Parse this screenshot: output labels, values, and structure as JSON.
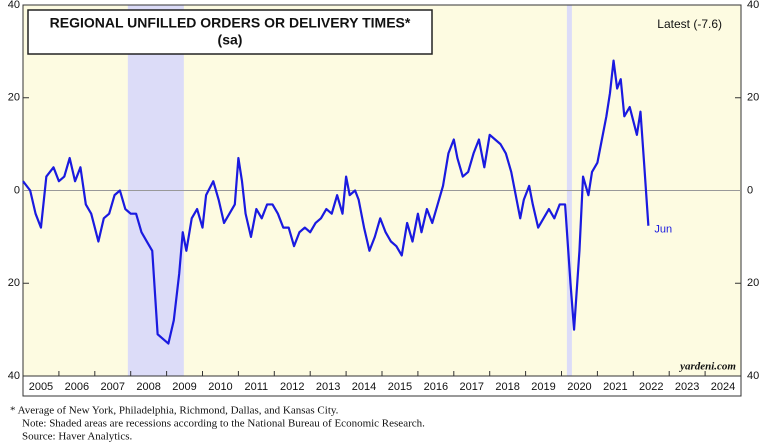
{
  "chart_data": {
    "type": "line",
    "title": "REGIONAL UNFILLED ORDERS OR DELIVERY TIMES*",
    "subtitle": "(sa)",
    "annotations": {
      "latest": "Latest (-7.6)",
      "end_label": "Jun",
      "source_mark": "yardeni.com"
    },
    "footnotes": [
      "*   Average of New York, Philadelphia, Richmond, Dallas, and Kansas City.",
      "Note: Shaded areas are recessions according to the National Bureau of Economic Research.",
      "Source: Haver Analytics."
    ],
    "recessions": [
      [
        2007.92,
        2009.48
      ],
      [
        2020.15,
        2020.29
      ]
    ],
    "xlim": [
      2005,
      2025
    ],
    "xticks": [
      2005,
      2006,
      2007,
      2008,
      2009,
      2010,
      2011,
      2012,
      2013,
      2014,
      2015,
      2016,
      2017,
      2018,
      2019,
      2020,
      2021,
      2022,
      2023,
      2024
    ],
    "ylim": [
      -40,
      40
    ],
    "yticks": [
      40,
      20,
      0,
      {
        "value": -20,
        "label": "20"
      },
      {
        "value": -40,
        "label": "40"
      }
    ],
    "series": [
      {
        "name": "Regional unfilled orders or delivery times",
        "color": "#1a1ae0",
        "x": [
          2005.0,
          2005.2,
          2005.35,
          2005.5,
          2005.65,
          2005.85,
          2006.0,
          2006.15,
          2006.3,
          2006.45,
          2006.6,
          2006.75,
          2006.9,
          2007.1,
          2007.25,
          2007.4,
          2007.55,
          2007.7,
          2007.85,
          2008.0,
          2008.15,
          2008.3,
          2008.45,
          2008.6,
          2008.75,
          2008.9,
          2009.05,
          2009.2,
          2009.35,
          2009.45,
          2009.55,
          2009.7,
          2009.85,
          2010.0,
          2010.1,
          2010.3,
          2010.45,
          2010.6,
          2010.75,
          2010.9,
          2011.0,
          2011.1,
          2011.2,
          2011.35,
          2011.5,
          2011.65,
          2011.8,
          2011.95,
          2012.1,
          2012.25,
          2012.4,
          2012.55,
          2012.7,
          2012.85,
          2013.0,
          2013.15,
          2013.3,
          2013.45,
          2013.6,
          2013.75,
          2013.9,
          2014.0,
          2014.1,
          2014.25,
          2014.35,
          2014.5,
          2014.65,
          2014.8,
          2014.95,
          2015.1,
          2015.25,
          2015.4,
          2015.55,
          2015.7,
          2015.85,
          2016.0,
          2016.1,
          2016.25,
          2016.4,
          2016.55,
          2016.7,
          2016.85,
          2017.0,
          2017.1,
          2017.25,
          2017.4,
          2017.55,
          2017.7,
          2017.85,
          2018.0,
          2018.15,
          2018.3,
          2018.45,
          2018.6,
          2018.75,
          2018.85,
          2018.95,
          2019.1,
          2019.2,
          2019.35,
          2019.5,
          2019.65,
          2019.8,
          2019.95,
          2020.1,
          2020.25,
          2020.35,
          2020.5,
          2020.6,
          2020.75,
          2020.85,
          2021.0,
          2021.1,
          2021.25,
          2021.35,
          2021.45,
          2021.55,
          2021.65,
          2021.75,
          2021.9,
          2022.0,
          2022.1,
          2022.2,
          2022.3,
          2022.42
        ],
        "values": [
          2,
          0,
          -5,
          -8,
          3,
          5,
          2,
          3,
          7,
          2,
          5,
          -3,
          -5,
          -11,
          -6,
          -5,
          -1,
          0,
          -4,
          -5,
          -5,
          -9,
          -11,
          -13,
          -31,
          -32,
          -33,
          -28,
          -18,
          -9,
          -13,
          -6,
          -4,
          -8,
          -1,
          2,
          -2,
          -7,
          -5,
          -3,
          7,
          2,
          -5,
          -10,
          -4,
          -6,
          -3,
          -3,
          -5,
          -8,
          -8,
          -12,
          -9,
          -8,
          -9,
          -7,
          -6,
          -4,
          -5,
          -1,
          -5,
          3,
          -1,
          0,
          -2,
          -8,
          -13,
          -10,
          -6,
          -9,
          -11,
          -12,
          -14,
          -7,
          -11,
          -5,
          -9,
          -4,
          -7,
          -3,
          1,
          8,
          11,
          7,
          3,
          4,
          8,
          11,
          5,
          12,
          11,
          10,
          8,
          4,
          -2,
          -6,
          -2,
          1,
          -3,
          -8,
          -6,
          -4,
          -6,
          -3,
          -3,
          -20,
          -30,
          -13,
          3,
          -1,
          4,
          6,
          10,
          16,
          21,
          28,
          22,
          24,
          16,
          18,
          15,
          12,
          17,
          6,
          -7.6
        ]
      }
    ]
  }
}
